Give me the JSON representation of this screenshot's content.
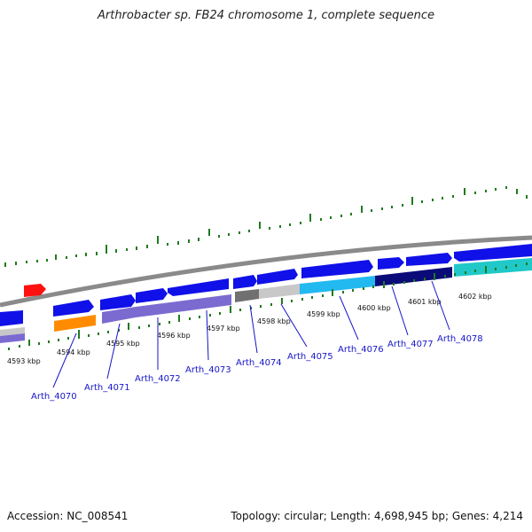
{
  "title": "Arthrobacter sp. FB24 chromosome 1, complete sequence",
  "footer": {
    "accession": "Accession: NC_008541",
    "stats": "Topology: circular; Length: 4,698,945 bp; Genes: 4,214"
  },
  "kbp_labels": [
    "4593 kbp",
    "4594 kbp",
    "4595 kbp",
    "4596 kbp",
    "4597 kbp",
    "4598 kbp",
    "4599 kbp",
    "4600 kbp",
    "4601 kbp",
    "4602 kbp"
  ],
  "gene_labels": [
    "Arth_4070",
    "Arth_4071",
    "Arth_4072",
    "Arth_4073",
    "Arth_4074",
    "Arth_4075",
    "Arth_4076",
    "Arth_4077",
    "Arth_4078"
  ],
  "colors": {
    "forward_gene": "#1010e8",
    "reverse_purple": "#7b6ad0",
    "orange": "#ff8c00",
    "red": "#ff1010",
    "cyan": "#22b8f0",
    "navy": "#0a0a78",
    "teal": "#20c8c8",
    "grey_light": "#c8c8c8",
    "grey_dark": "#707070",
    "tick": "#1f7a1f",
    "backbone": "#8a8a8a",
    "label": "#1515c8"
  }
}
